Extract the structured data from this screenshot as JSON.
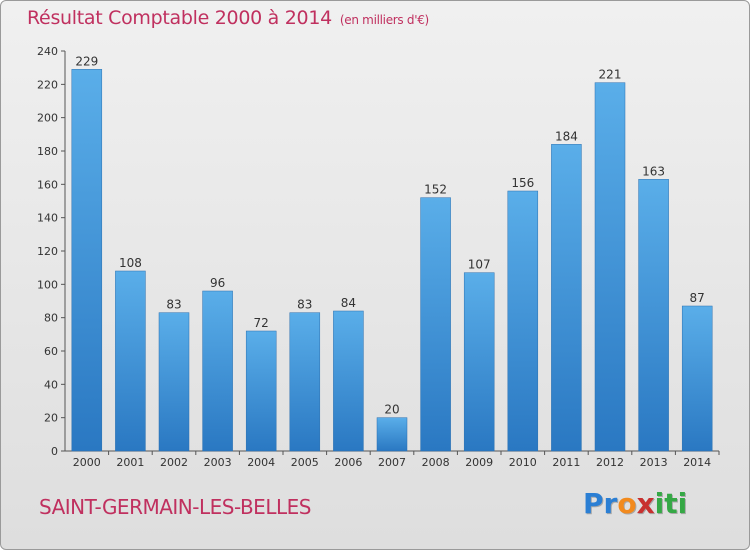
{
  "title": "Résultat Comptable 2000 à 2014",
  "unit": "(en milliers d'€)",
  "commune": "SAINT-GERMAIN-LES-BELLES",
  "logo": {
    "letters": [
      "P",
      "r",
      "o",
      "x",
      "i",
      "t",
      "i"
    ],
    "colors": [
      "#2b7fd4",
      "#2b7fd4",
      "#f28a1d",
      "#c8302f",
      "#35a845",
      "#35a845",
      "#35a845"
    ]
  },
  "colors": {
    "bar": "#4a9de0",
    "bar_dark": "#2a78c2",
    "title": "#c0305f"
  },
  "chart_data": {
    "type": "bar",
    "categories": [
      "2000",
      "2001",
      "2002",
      "2003",
      "2004",
      "2005",
      "2006",
      "2007",
      "2008",
      "2009",
      "2010",
      "2011",
      "2012",
      "2013",
      "2014"
    ],
    "values": [
      229,
      108,
      83,
      96,
      72,
      83,
      84,
      20,
      152,
      107,
      156,
      184,
      221,
      163,
      87
    ],
    "ylim": [
      0,
      240
    ],
    "yticks": [
      0,
      20,
      40,
      60,
      80,
      100,
      120,
      140,
      160,
      180,
      200,
      220,
      240
    ],
    "grid": false,
    "legend": "none"
  }
}
